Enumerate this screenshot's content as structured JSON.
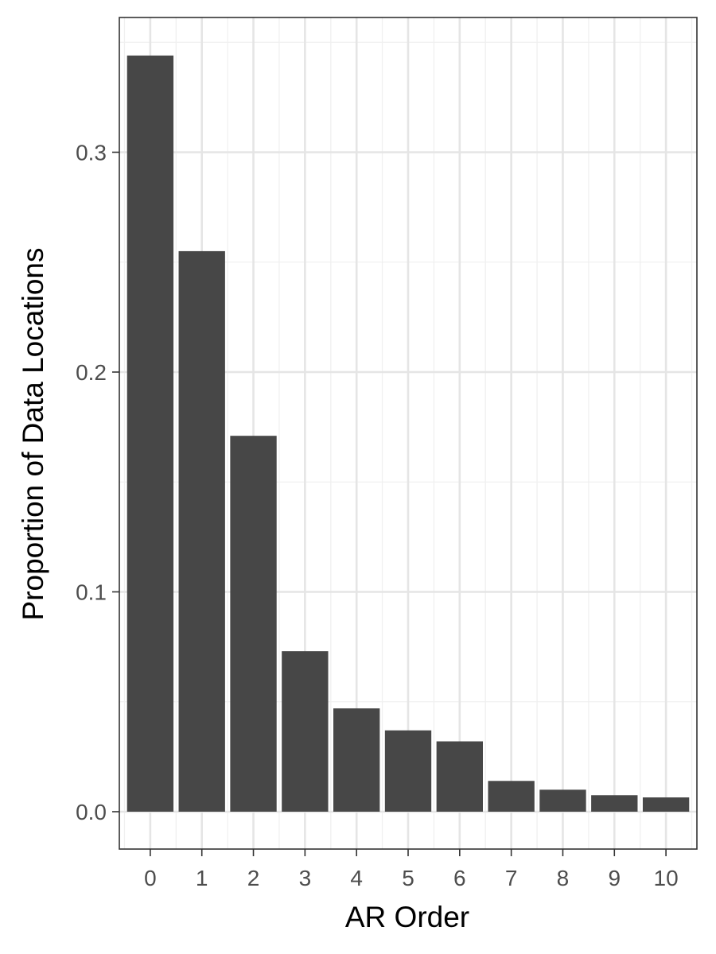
{
  "chart_data": {
    "type": "bar",
    "title": "",
    "xlabel": "AR Order",
    "ylabel": "Proportion of Data Locations",
    "categories": [
      "0",
      "1",
      "2",
      "3",
      "4",
      "5",
      "6",
      "7",
      "8",
      "9",
      "10"
    ],
    "values": [
      0.344,
      0.255,
      0.171,
      0.073,
      0.047,
      0.037,
      0.032,
      0.014,
      0.01,
      0.0075,
      0.0065
    ],
    "ylim": [
      -0.017,
      0.3613
    ],
    "yticks": [
      0.0,
      0.1,
      0.2,
      0.3
    ],
    "ytick_labels": [
      "0.0",
      "0.1",
      "0.2",
      "0.3"
    ],
    "grid": true,
    "legend": "none",
    "colors": {
      "bar": "#474747",
      "panel_border": "#333333",
      "grid_major": "#e5e5e5",
      "grid_minor": "#f0f0f0",
      "background": "#ffffff"
    }
  }
}
